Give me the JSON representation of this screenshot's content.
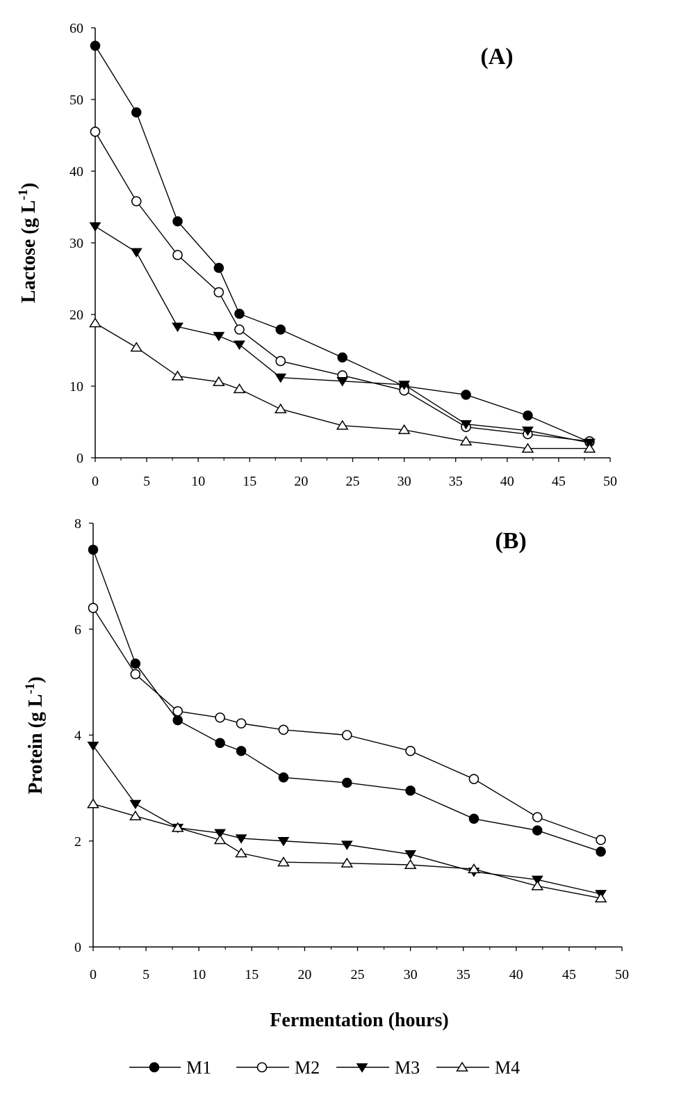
{
  "chart_data": [
    {
      "type": "line",
      "panel_label": "(A)",
      "xlabel": "",
      "ylabel": "Lactose (g L-1)",
      "ylabel_parts": {
        "main": "Lactose (g L",
        "sup": "-1",
        "close": ")"
      },
      "xlim": [
        0,
        50
      ],
      "ylim": [
        0,
        60
      ],
      "xticks": [
        "0",
        "5",
        "10",
        "15",
        "20",
        "25",
        "30",
        "35",
        "40",
        "45",
        "50"
      ],
      "yticks": [
        "0",
        "10",
        "20",
        "30",
        "40",
        "50",
        "60"
      ],
      "x": [
        0,
        4,
        8,
        12,
        14,
        18,
        24,
        30,
        36,
        42,
        48
      ],
      "series": [
        {
          "name": "M1",
          "marker": "filled-circle",
          "values": [
            57.5,
            48.2,
            33.0,
            26.5,
            20.1,
            17.9,
            14.0,
            10.0,
            8.8,
            5.9,
            2.2
          ]
        },
        {
          "name": "M2",
          "marker": "open-circle",
          "values": [
            45.5,
            35.8,
            28.3,
            23.1,
            17.9,
            13.5,
            11.5,
            9.4,
            4.3,
            3.3,
            2.3
          ]
        },
        {
          "name": "M3",
          "marker": "filled-triangle-down",
          "values": [
            32.3,
            28.7,
            18.3,
            17.0,
            15.8,
            11.2,
            10.7,
            10.2,
            4.7,
            3.8,
            2.1
          ]
        },
        {
          "name": "M4",
          "marker": "open-triangle-up",
          "values": [
            18.8,
            15.4,
            11.4,
            10.6,
            9.6,
            6.8,
            4.5,
            3.9,
            2.3,
            1.3,
            1.3
          ]
        }
      ]
    },
    {
      "type": "line",
      "panel_label": "(B)",
      "xlabel": "Fermentation (hours)",
      "ylabel": "Protein (g L-1)",
      "ylabel_parts": {
        "main": "Protein (g L",
        "sup": "-1",
        "close": ")"
      },
      "xlim": [
        0,
        50
      ],
      "ylim": [
        0,
        8
      ],
      "xticks": [
        "0",
        "5",
        "10",
        "15",
        "20",
        "25",
        "30",
        "35",
        "40",
        "45",
        "50"
      ],
      "yticks": [
        "0",
        "2",
        "4",
        "6",
        "8"
      ],
      "x": [
        0,
        4,
        8,
        12,
        14,
        18,
        24,
        30,
        36,
        42,
        48
      ],
      "series": [
        {
          "name": "M1",
          "marker": "filled-circle",
          "values": [
            7.5,
            5.35,
            4.28,
            3.85,
            3.7,
            3.2,
            3.1,
            2.95,
            2.42,
            2.2,
            1.8
          ]
        },
        {
          "name": "M2",
          "marker": "open-circle",
          "values": [
            6.4,
            5.15,
            4.45,
            4.33,
            4.22,
            4.1,
            4.0,
            3.7,
            3.17,
            2.45,
            2.02
          ]
        },
        {
          "name": "M3",
          "marker": "filled-triangle-down",
          "values": [
            3.8,
            2.7,
            2.25,
            2.15,
            2.05,
            2.0,
            1.93,
            1.75,
            1.42,
            1.27,
            1.0
          ]
        },
        {
          "name": "M4",
          "marker": "open-triangle-up",
          "values": [
            2.7,
            2.47,
            2.25,
            2.02,
            1.77,
            1.6,
            1.58,
            1.55,
            1.47,
            1.15,
            0.92
          ]
        }
      ]
    }
  ],
  "legend": {
    "placement": "bottom",
    "items": [
      {
        "label": "M1",
        "marker": "filled-circle"
      },
      {
        "label": "M2",
        "marker": "open-circle"
      },
      {
        "label": "M3",
        "marker": "filled-triangle-down"
      },
      {
        "label": "M4",
        "marker": "open-triangle-up"
      }
    ]
  }
}
